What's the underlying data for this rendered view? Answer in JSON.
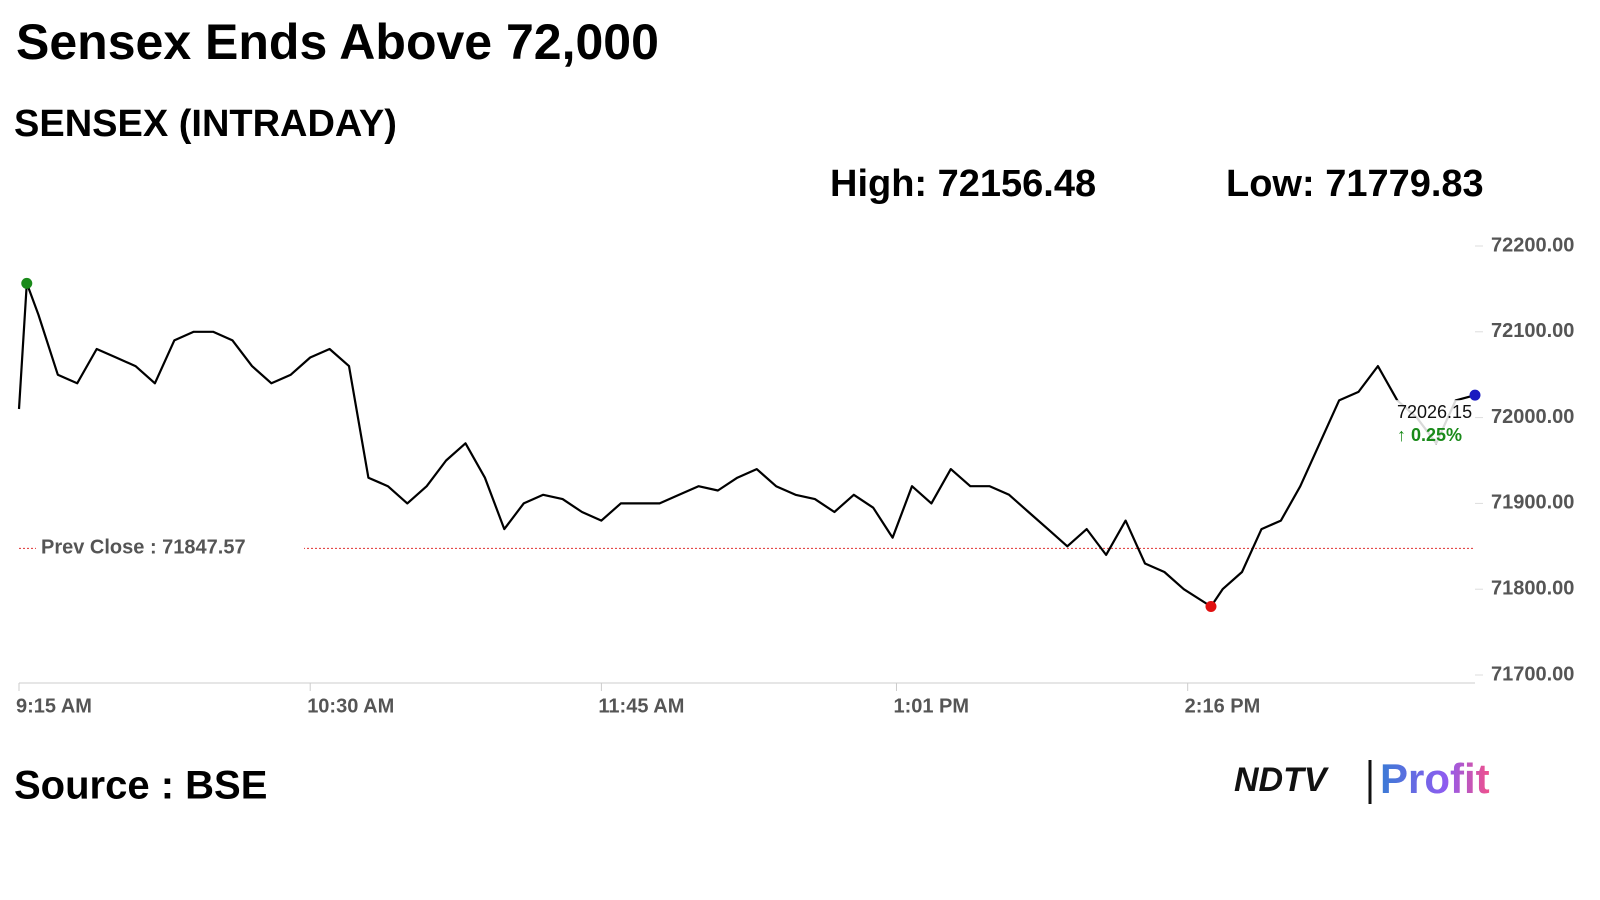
{
  "chart_data": {
    "type": "line",
    "title": "Sensex Ends Above 72,000",
    "subtitle": "SENSEX (INTRADAY)",
    "high_label": "High: 72156.48",
    "low_label": "Low: 71779.83",
    "source": "Source : BSE",
    "logo": [
      "NDTV",
      "Profit"
    ],
    "x": [
      "9:15 AM",
      "9:17 AM",
      "9:20 AM",
      "9:25 AM",
      "9:30 AM",
      "9:35 AM",
      "9:40 AM",
      "9:45 AM",
      "9:50 AM",
      "9:55 AM",
      "10:00 AM",
      "10:05 AM",
      "10:10 AM",
      "10:15 AM",
      "10:20 AM",
      "10:25 AM",
      "10:30 AM",
      "10:35 AM",
      "10:40 AM",
      "10:45 AM",
      "10:50 AM",
      "10:55 AM",
      "11:00 AM",
      "11:05 AM",
      "11:10 AM",
      "11:15 AM",
      "11:20 AM",
      "11:25 AM",
      "11:30 AM",
      "11:35 AM",
      "11:40 AM",
      "11:45 AM",
      "11:50 AM",
      "11:55 AM",
      "12:00 PM",
      "12:05 PM",
      "12:10 PM",
      "12:15 PM",
      "12:20 PM",
      "12:25 PM",
      "12:30 PM",
      "12:35 PM",
      "12:40 PM",
      "12:45 PM",
      "12:50 PM",
      "12:55 PM",
      "1:00 PM",
      "1:05 PM",
      "1:10 PM",
      "1:15 PM",
      "1:20 PM",
      "1:25 PM",
      "1:30 PM",
      "1:35 PM",
      "1:40 PM",
      "1:45 PM",
      "1:50 PM",
      "1:55 PM",
      "2:00 PM",
      "2:05 PM",
      "2:10 PM",
      "2:15 PM",
      "2:22 PM",
      "2:25 PM",
      "2:30 PM",
      "2:35 PM",
      "2:40 PM",
      "2:45 PM",
      "2:50 PM",
      "2:55 PM",
      "3:00 PM",
      "3:05 PM",
      "3:10 PM",
      "3:15 PM",
      "3:20 PM",
      "3:25 PM",
      "3:30 PM"
    ],
    "series": [
      {
        "name": "SENSEX",
        "color": "#000000",
        "values": [
          72010,
          72156.48,
          72120,
          72050,
          72040,
          72080,
          72070,
          72060,
          72040,
          72090,
          72100,
          72100,
          72090,
          72060,
          72040,
          72050,
          72070,
          72080,
          72060,
          71930,
          71920,
          71900,
          71920,
          71950,
          71970,
          71930,
          71870,
          71900,
          71910,
          71905,
          71890,
          71880,
          71900,
          71900,
          71900,
          71910,
          71920,
          71915,
          71930,
          71940,
          71920,
          71910,
          71905,
          71890,
          71910,
          71895,
          71860,
          71920,
          71900,
          71940,
          71920,
          71920,
          71910,
          71890,
          71870,
          71850,
          71870,
          71840,
          71880,
          71830,
          71820,
          71800,
          71779.83,
          71800,
          71820,
          71870,
          71880,
          71920,
          71970,
          72020,
          72030,
          72060,
          72020,
          72000,
          71970,
          72020,
          72026.15
        ]
      }
    ],
    "last_label": "72026.15",
    "change_label": "↑ 0.25%",
    "prev_close": {
      "value": 71847.57,
      "label": "Prev Close : 71847.57"
    },
    "ylim": [
      71700,
      72200
    ],
    "yticks": [
      {
        "value": 71700,
        "label": "71700.00"
      },
      {
        "value": 71800,
        "label": "71800.00"
      },
      {
        "value": 71900,
        "label": "71900.00"
      },
      {
        "value": 72000,
        "label": "72000.00"
      },
      {
        "value": 72100,
        "label": "72100.00"
      },
      {
        "value": 72200,
        "label": "72200.00"
      }
    ],
    "xticks": [
      "9:15 AM",
      "10:30 AM",
      "11:45 AM",
      "1:01 PM",
      "2:16 PM"
    ]
  }
}
